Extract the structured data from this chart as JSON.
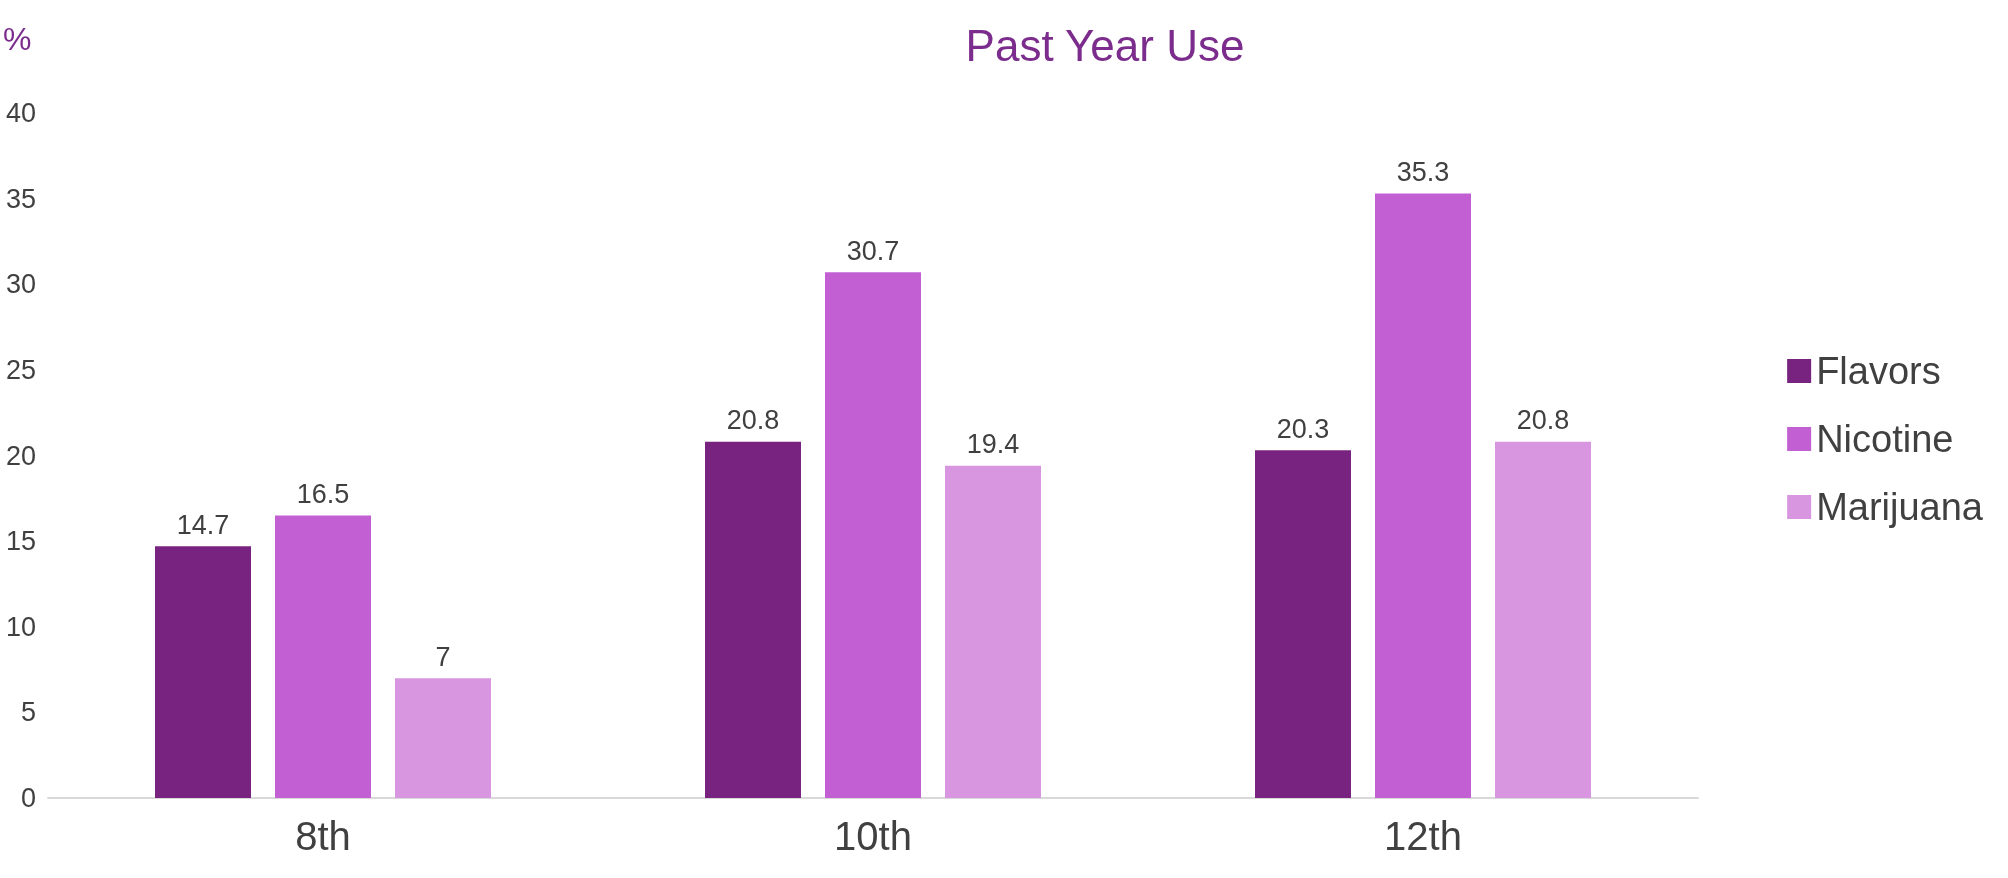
{
  "chart_data": {
    "type": "bar",
    "title": "Past Year Use",
    "ylabel": "%",
    "categories": [
      "8th",
      "10th",
      "12th"
    ],
    "series": [
      {
        "name": "Flavors",
        "color": "#77237f",
        "values": [
          14.7,
          20.8,
          20.3
        ]
      },
      {
        "name": "Nicotine",
        "color": "#c15fd3",
        "values": [
          16.5,
          30.7,
          35.3
        ]
      },
      {
        "name": "Marijuana",
        "color": "#d896e0",
        "values": [
          7,
          19.4,
          20.8
        ]
      }
    ],
    "ylim": [
      0,
      40
    ],
    "yticks": [
      0,
      5,
      10,
      15,
      20,
      25,
      30,
      35,
      40
    ],
    "data_labels": true,
    "grid": false,
    "legend": "right"
  }
}
